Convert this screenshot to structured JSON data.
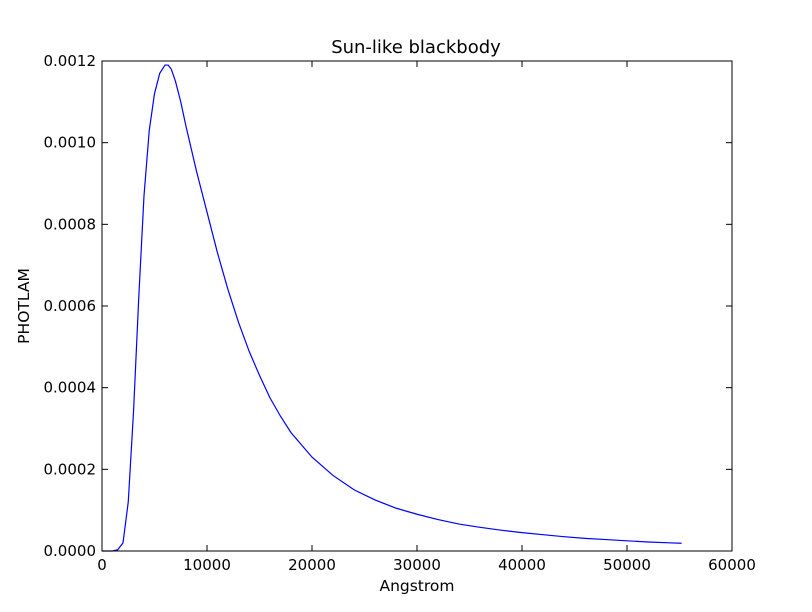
{
  "chart_data": {
    "type": "line",
    "title": "Sun-like blackbody",
    "xlabel": "Angstrom",
    "ylabel": "PHOTLAM",
    "xlim": [
      0,
      60000
    ],
    "ylim": [
      0,
      0.0012
    ],
    "xticks": [
      0,
      10000,
      20000,
      30000,
      40000,
      50000,
      60000
    ],
    "xtick_labels": [
      "0",
      "10000",
      "20000",
      "30000",
      "40000",
      "50000",
      "60000"
    ],
    "yticks": [
      0,
      0.0002,
      0.0004,
      0.0006,
      0.0008,
      0.001,
      0.0012
    ],
    "ytick_labels": [
      "0.0000",
      "0.0002",
      "0.0004",
      "0.0006",
      "0.0008",
      "0.0010",
      "0.0012"
    ],
    "grid": false,
    "series": [
      {
        "color": "#0000ff",
        "x": [
          0,
          1000,
          1500,
          2000,
          2500,
          3000,
          3500,
          4000,
          4500,
          5000,
          5500,
          6000,
          6300,
          6600,
          7000,
          7500,
          8000,
          9000,
          10000,
          11000,
          12000,
          13000,
          14000,
          15000,
          16000,
          17000,
          18000,
          19000,
          20000,
          22000,
          24000,
          26000,
          28000,
          30000,
          32000,
          34000,
          36000,
          38000,
          40000,
          42000,
          44000,
          46000,
          48000,
          50000,
          52000,
          54000,
          55200
        ],
        "y": [
          0,
          0,
          3e-06,
          2e-05,
          0.00012,
          0.00034,
          0.00062,
          0.00087,
          0.00103,
          0.00112,
          0.00117,
          0.00119,
          0.00119,
          0.00118,
          0.00115,
          0.0011,
          0.00104,
          0.00093,
          0.00083,
          0.00073,
          0.00064,
          0.00056,
          0.00049,
          0.00043,
          0.000375,
          0.00033,
          0.00029,
          0.00026,
          0.00023,
          0.000185,
          0.00015,
          0.000125,
          0.000105,
          9e-05,
          7.7e-05,
          6.6e-05,
          5.8e-05,
          5.1e-05,
          4.5e-05,
          4e-05,
          3.5e-05,
          3.1e-05,
          2.8e-05,
          2.5e-05,
          2.2e-05,
          2e-05,
          1.9e-05
        ]
      }
    ]
  }
}
